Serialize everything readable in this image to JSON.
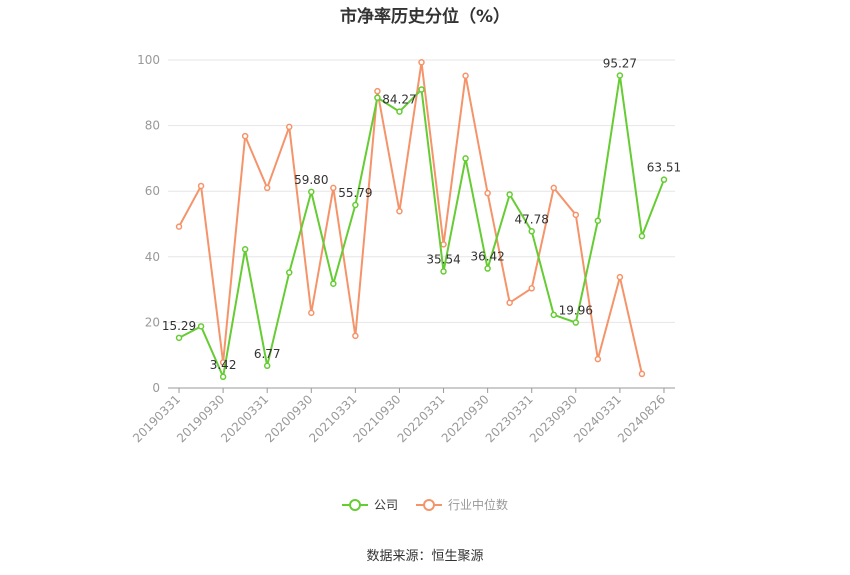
{
  "chart_data": {
    "type": "line",
    "title": "市净率历史分位（%）",
    "ylim": [
      0,
      100
    ],
    "yticks": [
      0,
      20,
      40,
      60,
      80,
      100
    ],
    "x_tick_labels": [
      "20190331",
      "20190930",
      "20200331",
      "20200930",
      "20210331",
      "20210930",
      "20220331",
      "20220930",
      "20230331",
      "20230930",
      "20240331",
      "20240826"
    ],
    "x_tick_indices": [
      0,
      2,
      4,
      6,
      8,
      10,
      12,
      14,
      16,
      18,
      20,
      22
    ],
    "series": [
      {
        "name": "公司",
        "color": "#66cc33",
        "values": [
          15.29,
          18.8,
          3.42,
          42.3,
          6.77,
          35.2,
          59.8,
          31.8,
          55.79,
          88.5,
          84.27,
          91.0,
          35.54,
          70.0,
          36.42,
          59.0,
          47.78,
          22.3,
          19.96,
          51.0,
          95.27,
          46.3,
          63.51
        ],
        "labels": {
          "0": "15.29",
          "2": "3.42",
          "4": "6.77",
          "6": "59.80",
          "8": "55.79",
          "10": "84.27",
          "12": "35.54",
          "14": "36.42",
          "16": "47.78",
          "18": "19.96",
          "20": "95.27",
          "22": "63.51"
        }
      },
      {
        "name": "行业中位数",
        "color": "#f5946a",
        "values": [
          49.2,
          61.6,
          7.8,
          76.8,
          61.0,
          79.6,
          22.9,
          61.0,
          15.9,
          90.5,
          53.9,
          99.3,
          43.8,
          95.2,
          59.4,
          26.0,
          30.4,
          61.0,
          52.8,
          8.8,
          33.8,
          4.3
        ]
      }
    ]
  },
  "source": "数据来源：恒生聚源"
}
